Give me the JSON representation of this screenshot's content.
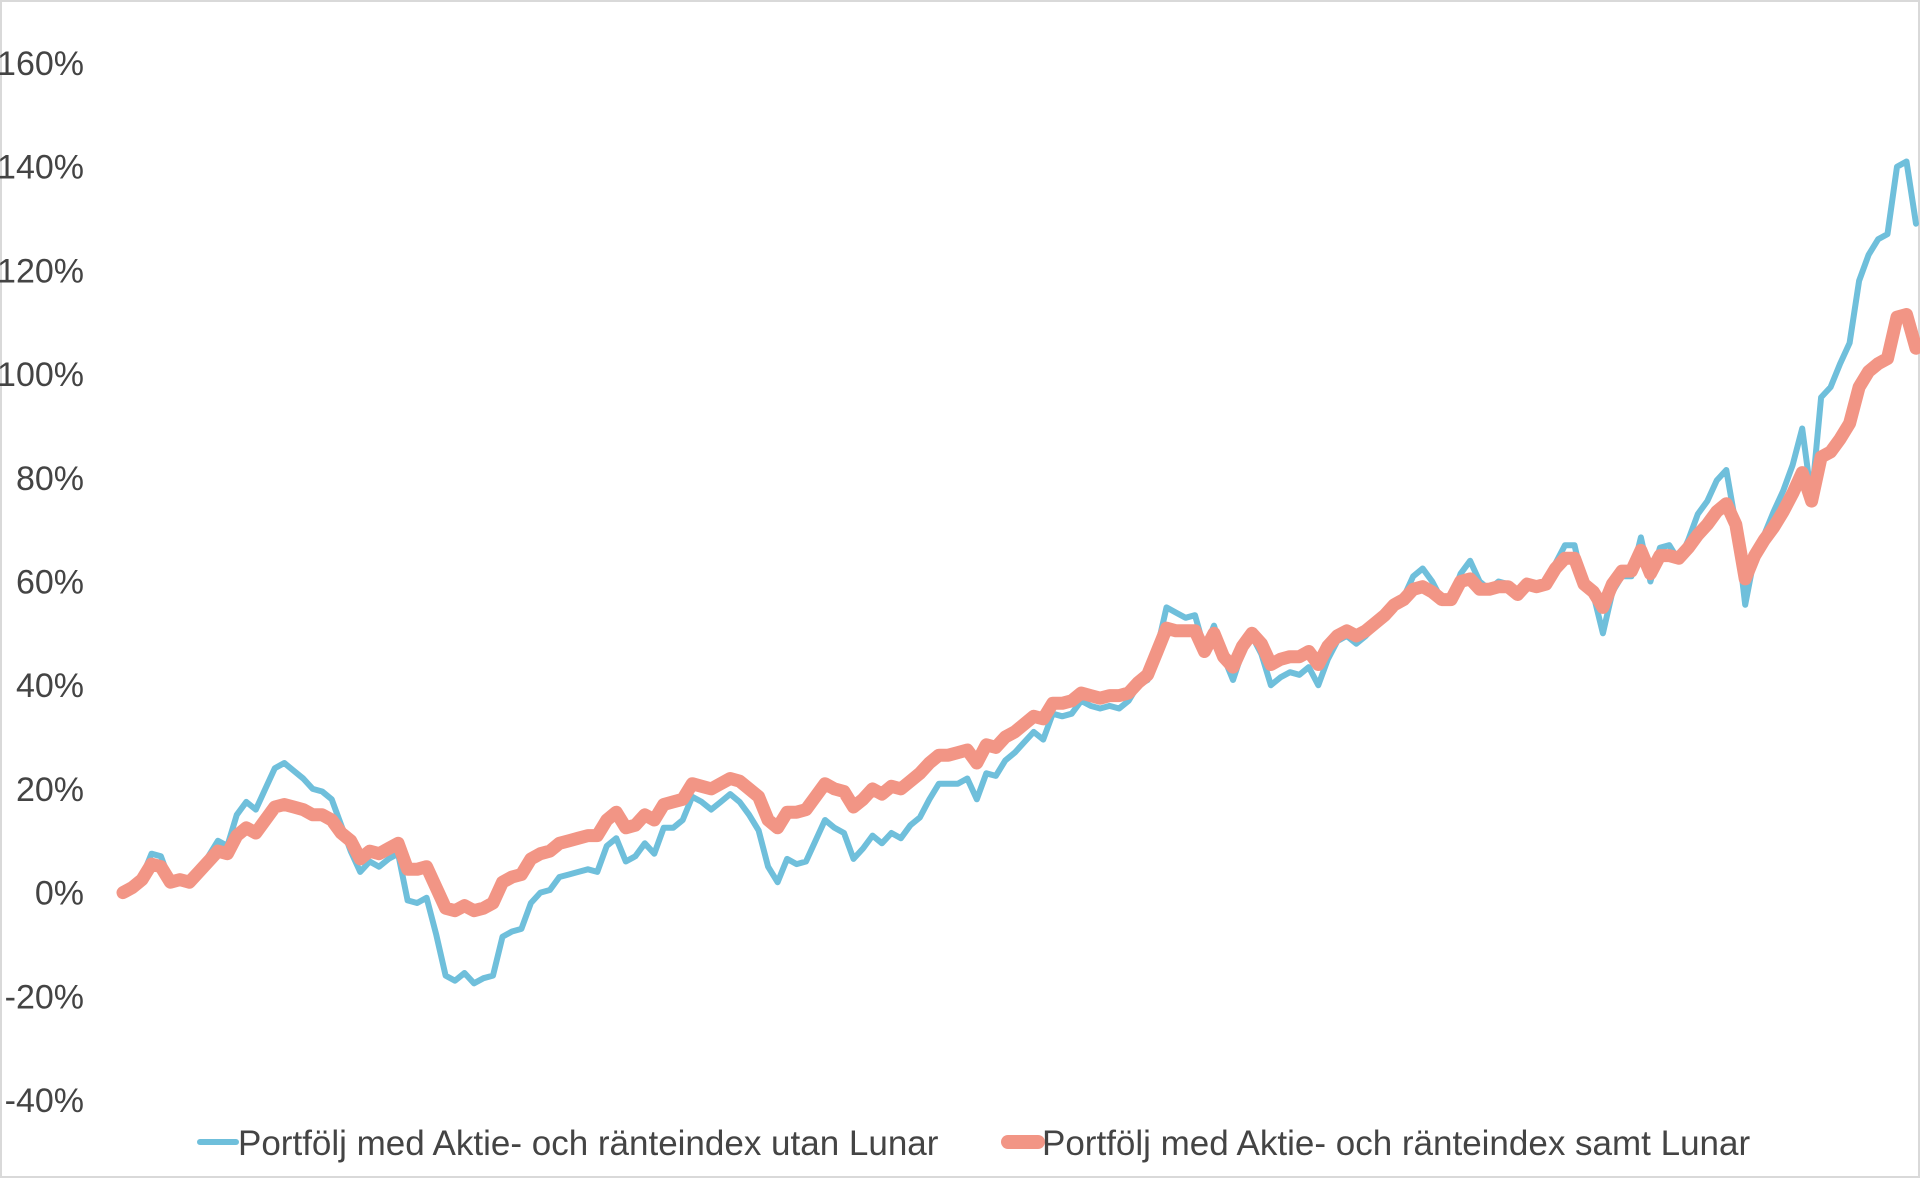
{
  "chart_data": {
    "type": "line",
    "title": "",
    "xlabel": "",
    "ylabel": "",
    "ylim": [
      -40,
      160
    ],
    "yticks": [
      -40,
      -20,
      0,
      20,
      40,
      60,
      80,
      100,
      120,
      140,
      160
    ],
    "ytick_labels": [
      "-40%",
      "-20%",
      "0%",
      "20%",
      "40%",
      "60%",
      "80%",
      "100%",
      "120%",
      "140%",
      "160%"
    ],
    "grid": false,
    "legend": "bottom",
    "series": [
      {
        "name": "Portfölj med Aktie- och ränteindex utan Lunar",
        "color": "#6fbfdb",
        "values": [
          0,
          1,
          3,
          7.5,
          7,
          2,
          2.5,
          2,
          4,
          7,
          10,
          9,
          15,
          17.5,
          16,
          20,
          24,
          25,
          23.5,
          22,
          20,
          19.5,
          18,
          13,
          8,
          4,
          6,
          5,
          6.5,
          7.5,
          -1.5,
          -2,
          -1,
          -8,
          -16,
          -17,
          -15.5,
          -17.5,
          -16.5,
          -16,
          -8.5,
          -7.5,
          -7,
          -2,
          0,
          0.5,
          3,
          3.5,
          4,
          4.5,
          4,
          9,
          10.5,
          6,
          7,
          9.5,
          7.5,
          12.5,
          12.5,
          14,
          18.5,
          17.5,
          16,
          17.5,
          19,
          17.5,
          15,
          12,
          5,
          2,
          6.5,
          5.5,
          6,
          10,
          14,
          12.5,
          11.5,
          6.5,
          8.5,
          11,
          9.5,
          11.5,
          10.5,
          13,
          14.5,
          18,
          21,
          21,
          21,
          22,
          18,
          23,
          22.5,
          25.5,
          27,
          29,
          31,
          29.5,
          34.5,
          34,
          34.5,
          37,
          36,
          35.5,
          36,
          35.5,
          37,
          40,
          41,
          47,
          55,
          54,
          53,
          53.5,
          47,
          51.5,
          45.5,
          41,
          46.5,
          49.5,
          46,
          40,
          41.5,
          42.5,
          42,
          43.5,
          40,
          45,
          48.5,
          49.5,
          48,
          49.5,
          51.5,
          53.5,
          55.5,
          57,
          61,
          62.5,
          60,
          56.5,
          56.5,
          61.5,
          64,
          60,
          58.5,
          60,
          59.5,
          58,
          59.5,
          59,
          59.5,
          63.5,
          67,
          67,
          59,
          57.5,
          50,
          58,
          61,
          61,
          68.5,
          60,
          66.5,
          67,
          64,
          68,
          73,
          75.5,
          79.5,
          81.5,
          71,
          55.5,
          65,
          69,
          73.5,
          77.5,
          82.5,
          89.5,
          76,
          95.5,
          97.5,
          102,
          106,
          118,
          123,
          126,
          127,
          140,
          141,
          129
        ]
      },
      {
        "name": "Portfölj med Aktie- och ränteindex samt Lunar",
        "color": "#f29585",
        "values": [
          0,
          1,
          2.5,
          5.5,
          5,
          2,
          2.5,
          2,
          4,
          6,
          8,
          7.5,
          11,
          12.5,
          11.5,
          14,
          16.5,
          17,
          16.5,
          16,
          15,
          15,
          14,
          11.5,
          10,
          6.5,
          8,
          7.5,
          8.5,
          9.5,
          4.5,
          4.5,
          5,
          1,
          -3,
          -3.5,
          -2.5,
          -3.5,
          -3,
          -2,
          2,
          3,
          3.5,
          6.5,
          7.5,
          8,
          9.5,
          10,
          10.5,
          11,
          11,
          14,
          15.5,
          12.5,
          13,
          15,
          14,
          17,
          17.5,
          18,
          21,
          20.5,
          20,
          21,
          22,
          21.5,
          20,
          18.5,
          14,
          12.5,
          15.5,
          15.5,
          16,
          18.5,
          21,
          20,
          19.5,
          16.5,
          18,
          20,
          19,
          20.5,
          20,
          21.5,
          23,
          25,
          26.5,
          26.5,
          27,
          27.5,
          25,
          28.5,
          28,
          30,
          31,
          32.5,
          34,
          33.5,
          36.5,
          36.5,
          37,
          38.5,
          38,
          37.5,
          38,
          38,
          38.5,
          40.5,
          42,
          46.5,
          51,
          50.5,
          50.5,
          50.5,
          46.5,
          50,
          45.5,
          43.5,
          47.5,
          50,
          48,
          44,
          45,
          45.5,
          45.5,
          46.5,
          44,
          47.5,
          49.5,
          50.5,
          49.5,
          50.5,
          52,
          53.5,
          55.5,
          56.5,
          58.5,
          59,
          58,
          56.5,
          56.5,
          60,
          60.5,
          58.5,
          58.5,
          59,
          59,
          57.5,
          59.5,
          59,
          59.5,
          62.5,
          64.5,
          64.5,
          59.5,
          58,
          55,
          59.5,
          62,
          62,
          66,
          61.5,
          65,
          65,
          64.5,
          66.5,
          69,
          71,
          73.5,
          75,
          71,
          60.5,
          65,
          68,
          70.5,
          73.5,
          77,
          81,
          75.5,
          84,
          85,
          87.5,
          90.5,
          97.5,
          100.5,
          102,
          103,
          111,
          111.5,
          105
        ]
      }
    ]
  }
}
